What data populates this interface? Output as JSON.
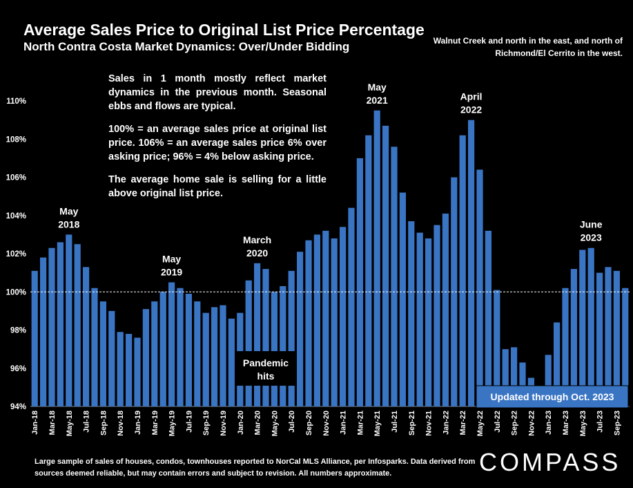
{
  "title": "Average Sales Price to Original List Price Percentage",
  "subtitle": "North Contra Costa Market Dynamics: Over/Under Bidding",
  "region_note": "Walnut Creek and north in the east, and north of Richmond/El Cerrito in the west.",
  "notes": [
    "Sales in 1 month mostly reflect market dynamics in the previous month. Seasonal ebbs and flows are typical.",
    "100% = an average sales price at original list price. 106% = an average sales price 6% over asking price; 96% = 4% below asking price.",
    "The average home sale is selling for a little above original list price."
  ],
  "footer": "Large sample of sales of houses, condos, townhouses reported to NorCal MLS Alliance, per Infosparks. Data derived from sources deemed reliable, but may contain errors and subject to revision. All numbers approximate.",
  "logo": "COMPASS",
  "chart_data": {
    "type": "bar",
    "ylim": [
      94,
      110
    ],
    "yticks": [
      "94%",
      "96%",
      "98%",
      "100%",
      "102%",
      "104%",
      "106%",
      "108%",
      "110%"
    ],
    "reference_line": 100,
    "categories": [
      "Jan-18",
      "Feb-18",
      "Mar-18",
      "Apr-18",
      "May-18",
      "Jun-18",
      "Jul-18",
      "Aug-18",
      "Sep-18",
      "Oct-18",
      "Nov-18",
      "Dec-18",
      "Jan-19",
      "Feb-19",
      "Mar-19",
      "Apr-19",
      "May-19",
      "Jun-19",
      "Jul-19",
      "Aug-19",
      "Sep-19",
      "Oct-19",
      "Nov-19",
      "Dec-19",
      "Jan-20",
      "Feb-20",
      "Mar-20",
      "Apr-20",
      "May-20",
      "Jun-20",
      "Jul-20",
      "Aug-20",
      "Sep-20",
      "Oct-20",
      "Nov-20",
      "Dec-20",
      "Jan-21",
      "Feb-21",
      "Mar-21",
      "Apr-21",
      "May-21",
      "Jun-21",
      "Jul-21",
      "Aug-21",
      "Sep-21",
      "Oct-21",
      "Nov-21",
      "Dec-21",
      "Jan-22",
      "Feb-22",
      "Mar-22",
      "Apr-22",
      "May-22",
      "Jun-22",
      "Jul-22",
      "Aug-22",
      "Sep-22",
      "Oct-22",
      "Nov-22",
      "Dec-22",
      "Jan-23",
      "Feb-23",
      "Mar-23",
      "Apr-23",
      "May-23",
      "Jun-23",
      "Jul-23",
      "Aug-23",
      "Sep-23",
      "Oct-23"
    ],
    "values": [
      101.1,
      101.8,
      102.3,
      102.6,
      103.0,
      102.5,
      101.3,
      100.2,
      99.5,
      99.0,
      97.9,
      97.8,
      97.6,
      99.1,
      99.5,
      100.0,
      100.5,
      100.2,
      99.9,
      99.5,
      98.9,
      99.2,
      99.3,
      98.6,
      98.9,
      100.6,
      101.5,
      101.2,
      100.0,
      100.3,
      101.1,
      102.1,
      102.7,
      103.0,
      103.2,
      102.8,
      103.4,
      104.4,
      107.0,
      108.2,
      109.5,
      108.7,
      107.6,
      105.2,
      103.7,
      103.1,
      102.8,
      103.5,
      104.1,
      106.0,
      108.2,
      109.0,
      106.4,
      103.2,
      100.1,
      97.0,
      97.1,
      96.3,
      95.5,
      95.1,
      96.7,
      98.4,
      100.2,
      101.2,
      102.2,
      102.3,
      101.0,
      101.3,
      101.1,
      100.2
    ],
    "xtick_labels": [
      "Jan-18",
      "Mar-18",
      "May-18",
      "Jul-18",
      "Sep-18",
      "Nov-18",
      "Jan-19",
      "Mar-19",
      "May-19",
      "Jul-19",
      "Sep-19",
      "Nov-19",
      "Jan-20",
      "Mar-20",
      "May-20",
      "Jul-20",
      "Sep-20",
      "Nov-20",
      "Jan-21",
      "Mar-21",
      "May-21",
      "Jul-21",
      "Sep-21",
      "Nov-21",
      "Jan-22",
      "Mar-22",
      "May-22",
      "Jul-22",
      "Sep-22",
      "Nov-22",
      "Jan-23",
      "Mar-23",
      "May-23",
      "Jul-23",
      "Sep-23"
    ],
    "annotations": [
      {
        "lines": [
          "May",
          "2018"
        ],
        "category": "May-18",
        "value": 103.0
      },
      {
        "lines": [
          "May",
          "2019"
        ],
        "category": "May-19",
        "value": 100.5
      },
      {
        "lines": [
          "March",
          "2020"
        ],
        "category": "Mar-20",
        "value": 101.5
      },
      {
        "lines": [
          "May",
          "2021"
        ],
        "category": "May-21",
        "value": 109.5
      },
      {
        "lines": [
          "April",
          "2022"
        ],
        "category": "Apr-22",
        "value": 109.0
      },
      {
        "lines": [
          "June",
          "2023"
        ],
        "category": "Jun-23",
        "value": 102.3
      }
    ],
    "pandemic_label": [
      "Pandemic",
      "hits"
    ],
    "updated_label": "Updated through Oct. 2023",
    "colors": {
      "bar": "#3a75c4",
      "background": "#000000",
      "badge": "#3a75c4",
      "text": "#ffffff"
    }
  }
}
